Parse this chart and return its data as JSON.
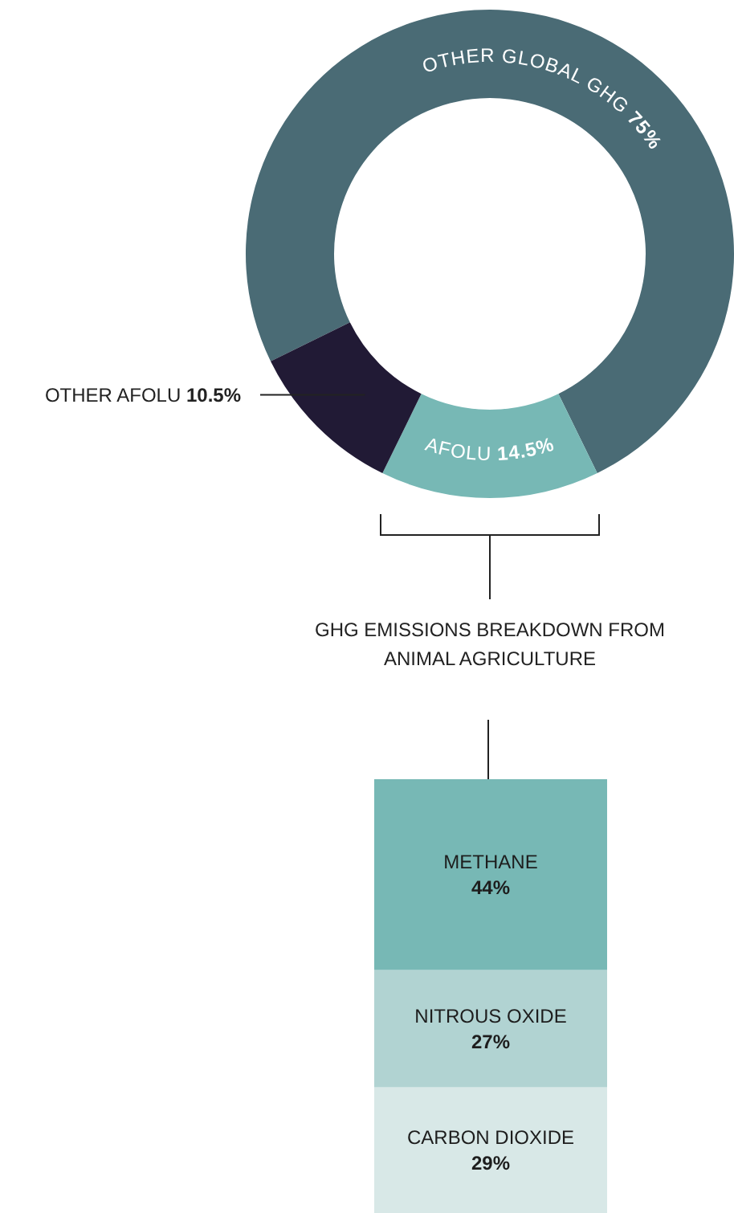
{
  "chart_data": [
    {
      "type": "donut",
      "categories": [
        "OTHER GLOBAL GHG",
        "AFOLU",
        "OTHER AFOLU"
      ],
      "values": [
        75,
        14.5,
        10.5
      ],
      "colors": [
        "#4a6b75",
        "#77b8b5",
        "#211a35"
      ],
      "value_labels": [
        "75%",
        "14.5%",
        "10.5%"
      ]
    },
    {
      "type": "bar",
      "title": "GHG EMISSIONS BREAKDOWN FROM ANIMAL AGRICULTURE",
      "categories": [
        null
      ],
      "stacked": true,
      "tick_labels": false,
      "series": [
        {
          "name": "CARBON DIOXIDE",
          "color": "#d8e8e7",
          "values": [
            29
          ],
          "value_labels": [
            "29%"
          ]
        },
        {
          "name": "NITROUS OXIDE",
          "color": "#b1d3d2",
          "values": [
            27
          ],
          "value_labels": [
            "27%"
          ]
        },
        {
          "name": "METHANE",
          "color": "#77b8b5",
          "values": [
            44
          ],
          "value_labels": [
            "44%"
          ]
        }
      ]
    }
  ]
}
